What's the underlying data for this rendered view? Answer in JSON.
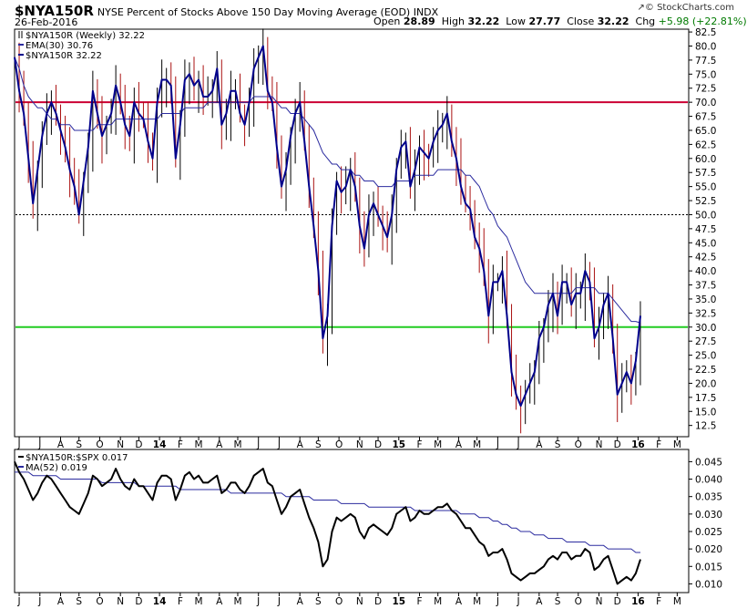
{
  "header": {
    "symbol": "$NYA150R",
    "description": "NYSE Percent of Stocks Above 150 Day Moving Average (EOD)  INDX",
    "date": "26-Feb-2016",
    "open_label": "Open",
    "open": "28.89",
    "high_label": "High",
    "high": "32.22",
    "low_label": "Low",
    "low": "27.77",
    "close_label": "Close",
    "close": "32.22",
    "chg_label": "Chg",
    "chg": "+5.98 (+22.81%)",
    "credit": "© StockCharts.com",
    "credit_icon": "arrow-up-icon"
  },
  "colors": {
    "price": "#00008b",
    "ema": "#2b2b9f",
    "resistance": "#cc0033",
    "support": "#22cc22",
    "ratio": "#000000",
    "ma52": "#2b2b9f",
    "down_bar": "#aa1111",
    "up_bar": "#000000"
  },
  "chart_data": [
    {
      "type": "line",
      "legend": [
        {
          "label": "$NYA150R (Weekly) 32.22",
          "icon": "bar-icon"
        },
        {
          "label": "EMA(30) 30.76",
          "icon": "line-icon"
        },
        {
          "label": "$NYA150R 32.22",
          "icon": "line-icon"
        }
      ],
      "x_ticks": [
        {
          "label": "J",
          "week": 1
        },
        {
          "label": "J",
          "week": 5.5
        },
        {
          "label": "A",
          "week": 10
        },
        {
          "label": "S",
          "week": 14
        },
        {
          "label": "O",
          "week": 18.5
        },
        {
          "label": "N",
          "week": 23
        },
        {
          "label": "D",
          "week": 27
        },
        {
          "label": "14",
          "week": 31.5,
          "bold": true
        },
        {
          "label": "F",
          "week": 36
        },
        {
          "label": "M",
          "week": 40
        },
        {
          "label": "A",
          "week": 44.5
        },
        {
          "label": "M",
          "week": 48.5
        },
        {
          "label": "J",
          "week": 53
        },
        {
          "label": "J",
          "week": 57.5
        },
        {
          "label": "A",
          "week": 62
        },
        {
          "label": "S",
          "week": 66
        },
        {
          "label": "O",
          "week": 70.5
        },
        {
          "label": "N",
          "week": 75
        },
        {
          "label": "D",
          "week": 79
        },
        {
          "label": "15",
          "week": 83.5,
          "bold": true
        },
        {
          "label": "F",
          "week": 88
        },
        {
          "label": "M",
          "week": 92
        },
        {
          "label": "A",
          "week": 96.5
        },
        {
          "label": "M",
          "week": 100.5
        },
        {
          "label": "J",
          "week": 105
        },
        {
          "label": "J",
          "week": 109.5
        },
        {
          "label": "A",
          "week": 114
        },
        {
          "label": "S",
          "week": 118
        },
        {
          "label": "O",
          "week": 122.5
        },
        {
          "label": "N",
          "week": 127
        },
        {
          "label": "D",
          "week": 131
        },
        {
          "label": "16",
          "week": 135.5,
          "bold": true
        },
        {
          "label": "F",
          "week": 140
        },
        {
          "label": "M",
          "week": 144
        }
      ],
      "x_range": [
        0,
        146.5
      ],
      "y_range": [
        10.5,
        83
      ],
      "y_ticks": [
        "12.5",
        "15.0",
        "17.5",
        "20.0",
        "22.5",
        "25.0",
        "27.5",
        "30.0",
        "32.5",
        "35.0",
        "37.5",
        "40.0",
        "42.5",
        "45.0",
        "47.5",
        "50.0",
        "52.5",
        "55.0",
        "57.5",
        "60.0",
        "62.5",
        "65.0",
        "67.5",
        "70.0",
        "72.5",
        "75.0",
        "77.5",
        "80.0",
        "82.5"
      ],
      "horizontal_lines": [
        {
          "value": 70.0,
          "style": "solid",
          "color_key": "resistance"
        },
        {
          "value": 50.0,
          "style": "dotted",
          "color_key": "ratio"
        },
        {
          "value": 30.0,
          "style": "solid",
          "color_key": "support"
        }
      ],
      "series": [
        {
          "name": "$NYA150R",
          "values": [
            78,
            72,
            68,
            60,
            52,
            58,
            64,
            68,
            70,
            68,
            65,
            62,
            58,
            55,
            50,
            56,
            62,
            72,
            68,
            64,
            66,
            68,
            73,
            70,
            66,
            64,
            70,
            68,
            67,
            63,
            60,
            70,
            74,
            74,
            73,
            60,
            66,
            74,
            75,
            73,
            74,
            71,
            71,
            72,
            76,
            66,
            68,
            72,
            72,
            68,
            66,
            70,
            76,
            78,
            80,
            72,
            70,
            62,
            55,
            58,
            64,
            68,
            70,
            63,
            55,
            48,
            40,
            28,
            32,
            48,
            56,
            54,
            55,
            58,
            55,
            48,
            44,
            50,
            52,
            50,
            48,
            46,
            50,
            58,
            62,
            63,
            55,
            58,
            62,
            61,
            60,
            63,
            65,
            66,
            68,
            63,
            60,
            55,
            52,
            51,
            46,
            44,
            40,
            32,
            38,
            38,
            40,
            32,
            22,
            18,
            16,
            18,
            20,
            22,
            28,
            30,
            34,
            36,
            32,
            38,
            38,
            34,
            36,
            36,
            40,
            38,
            28,
            30,
            34,
            36,
            28,
            18,
            20,
            22,
            20,
            24,
            32
          ],
          "color_key": "price"
        },
        {
          "name": "EMA(30)",
          "values": [
            78,
            76,
            73,
            71,
            70,
            69,
            69,
            68,
            67,
            67,
            66,
            66,
            66,
            65,
            65,
            65,
            65,
            65,
            66,
            66,
            66,
            66,
            67,
            67,
            67,
            67,
            67,
            67,
            67,
            67,
            67,
            67,
            68,
            68,
            68,
            68,
            68,
            69,
            69,
            69,
            69,
            69,
            70,
            70,
            70,
            70,
            70,
            70,
            70,
            70,
            70,
            70,
            71,
            71,
            71,
            71,
            71,
            70,
            69,
            69,
            68,
            68,
            68,
            67,
            66,
            65,
            63,
            61,
            60,
            59,
            59,
            58,
            58,
            58,
            57,
            57,
            56,
            56,
            56,
            55,
            55,
            55,
            55,
            56,
            56,
            56,
            56,
            57,
            57,
            57,
            57,
            57,
            58,
            58,
            58,
            58,
            58,
            58,
            57,
            57,
            56,
            55,
            53,
            51,
            50,
            48,
            47,
            46,
            44,
            42,
            40,
            38,
            37,
            36,
            36,
            36,
            36,
            36,
            36,
            36,
            36,
            36,
            37,
            37,
            37,
            37,
            37,
            36,
            36,
            36,
            35,
            34,
            33,
            32,
            31,
            31,
            30.76
          ],
          "color_key": "ema"
        }
      ]
    },
    {
      "type": "line",
      "legend": [
        {
          "label": "$NYA150R:$SPX 0.017",
          "icon": "line-icon"
        },
        {
          "label": "MA(52) 0.019",
          "icon": "line-icon"
        }
      ],
      "x_ticks_same_as_top": true,
      "y_range": [
        0.0075,
        0.0485
      ],
      "y_ticks": [
        "0.010",
        "0.015",
        "0.020",
        "0.025",
        "0.030",
        "0.035",
        "0.040",
        "0.045"
      ],
      "series": [
        {
          "name": "$NYA150R:$SPX",
          "values": [
            0.045,
            0.042,
            0.04,
            0.037,
            0.034,
            0.036,
            0.039,
            0.041,
            0.04,
            0.038,
            0.036,
            0.034,
            0.032,
            0.031,
            0.03,
            0.033,
            0.036,
            0.041,
            0.04,
            0.038,
            0.039,
            0.04,
            0.043,
            0.04,
            0.038,
            0.037,
            0.04,
            0.038,
            0.038,
            0.036,
            0.034,
            0.039,
            0.041,
            0.041,
            0.04,
            0.034,
            0.037,
            0.041,
            0.042,
            0.04,
            0.041,
            0.039,
            0.039,
            0.04,
            0.041,
            0.036,
            0.037,
            0.039,
            0.039,
            0.037,
            0.036,
            0.038,
            0.041,
            0.042,
            0.043,
            0.039,
            0.038,
            0.034,
            0.03,
            0.032,
            0.035,
            0.036,
            0.037,
            0.033,
            0.029,
            0.026,
            0.022,
            0.015,
            0.017,
            0.025,
            0.029,
            0.028,
            0.029,
            0.03,
            0.029,
            0.025,
            0.023,
            0.026,
            0.027,
            0.026,
            0.025,
            0.024,
            0.026,
            0.03,
            0.031,
            0.032,
            0.028,
            0.029,
            0.031,
            0.03,
            0.03,
            0.031,
            0.032,
            0.032,
            0.033,
            0.031,
            0.03,
            0.028,
            0.026,
            0.026,
            0.024,
            0.022,
            0.021,
            0.018,
            0.019,
            0.019,
            0.02,
            0.017,
            0.013,
            0.012,
            0.011,
            0.012,
            0.013,
            0.013,
            0.014,
            0.015,
            0.017,
            0.018,
            0.017,
            0.019,
            0.019,
            0.017,
            0.018,
            0.018,
            0.02,
            0.019,
            0.014,
            0.015,
            0.017,
            0.018,
            0.014,
            0.01,
            0.011,
            0.012,
            0.011,
            0.013,
            0.017
          ],
          "color_key": "ratio"
        },
        {
          "name": "MA(52)",
          "values": [
            0.042,
            0.042,
            0.042,
            0.042,
            0.041,
            0.041,
            0.041,
            0.041,
            0.041,
            0.041,
            0.04,
            0.04,
            0.04,
            0.04,
            0.04,
            0.04,
            0.04,
            0.04,
            0.04,
            0.039,
            0.039,
            0.039,
            0.039,
            0.039,
            0.039,
            0.039,
            0.039,
            0.038,
            0.038,
            0.038,
            0.038,
            0.038,
            0.038,
            0.038,
            0.038,
            0.038,
            0.037,
            0.037,
            0.037,
            0.037,
            0.037,
            0.037,
            0.037,
            0.037,
            0.037,
            0.037,
            0.037,
            0.036,
            0.036,
            0.036,
            0.036,
            0.036,
            0.036,
            0.036,
            0.036,
            0.036,
            0.036,
            0.036,
            0.036,
            0.035,
            0.035,
            0.035,
            0.035,
            0.035,
            0.035,
            0.034,
            0.034,
            0.034,
            0.034,
            0.034,
            0.034,
            0.033,
            0.033,
            0.033,
            0.033,
            0.033,
            0.033,
            0.032,
            0.032,
            0.032,
            0.032,
            0.032,
            0.032,
            0.032,
            0.032,
            0.032,
            0.032,
            0.031,
            0.031,
            0.031,
            0.031,
            0.031,
            0.031,
            0.031,
            0.031,
            0.031,
            0.031,
            0.03,
            0.03,
            0.03,
            0.03,
            0.029,
            0.029,
            0.029,
            0.028,
            0.028,
            0.027,
            0.027,
            0.026,
            0.026,
            0.025,
            0.025,
            0.025,
            0.024,
            0.024,
            0.024,
            0.023,
            0.023,
            0.023,
            0.023,
            0.022,
            0.022,
            0.022,
            0.022,
            0.022,
            0.021,
            0.021,
            0.021,
            0.021,
            0.02,
            0.02,
            0.02,
            0.02,
            0.02,
            0.02,
            0.019,
            0.019
          ],
          "color_key": "ma52"
        }
      ]
    }
  ]
}
